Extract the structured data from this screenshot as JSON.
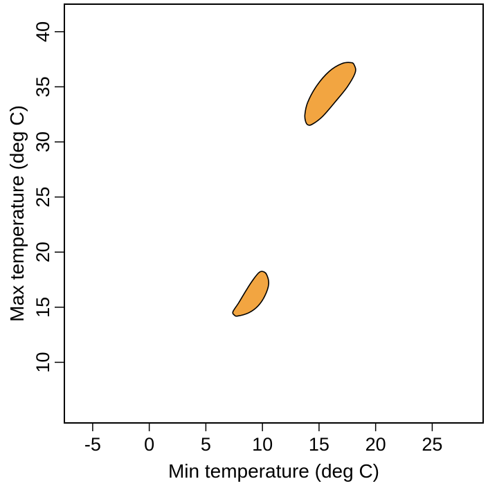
{
  "chart_data": {
    "type": "area",
    "title": "",
    "xlabel": "Min temperature (deg C)",
    "ylabel": "Max temperature (deg C)",
    "xlim": [
      -7.5,
      29.5
    ],
    "ylim": [
      4.5,
      42.5
    ],
    "xticks": [
      -5,
      0,
      5,
      10,
      15,
      20,
      25
    ],
    "yticks": [
      10,
      15,
      20,
      25,
      30,
      35,
      40
    ],
    "xtick_labels": [
      "-5",
      "0",
      "5",
      "10",
      "15",
      "20",
      "25"
    ],
    "ytick_labels": [
      "10",
      "15",
      "20",
      "25",
      "30",
      "35",
      "40"
    ],
    "grid": false,
    "fill_color": "#F2A541",
    "stroke_color": "#000000",
    "regions": [
      {
        "points": [
          [
            7.5,
            14.3
          ],
          [
            7.8,
            14.2
          ],
          [
            8.8,
            14.5
          ],
          [
            9.6,
            15.1
          ],
          [
            10.2,
            16.0
          ],
          [
            10.55,
            17.1
          ],
          [
            10.35,
            18.0
          ],
          [
            10.0,
            18.25
          ],
          [
            9.7,
            18.15
          ],
          [
            9.25,
            17.6
          ],
          [
            8.6,
            16.6
          ],
          [
            7.9,
            15.4
          ],
          [
            7.4,
            14.6
          ]
        ]
      },
      {
        "points": [
          [
            13.8,
            31.9
          ],
          [
            14.0,
            31.55
          ],
          [
            14.4,
            31.6
          ],
          [
            15.3,
            32.3
          ],
          [
            16.4,
            33.6
          ],
          [
            17.5,
            35.0
          ],
          [
            18.2,
            36.3
          ],
          [
            18.1,
            37.0
          ],
          [
            17.8,
            37.2
          ],
          [
            17.0,
            37.1
          ],
          [
            15.9,
            36.4
          ],
          [
            14.8,
            35.1
          ],
          [
            14.0,
            33.6
          ],
          [
            13.75,
            32.5
          ]
        ]
      }
    ]
  }
}
